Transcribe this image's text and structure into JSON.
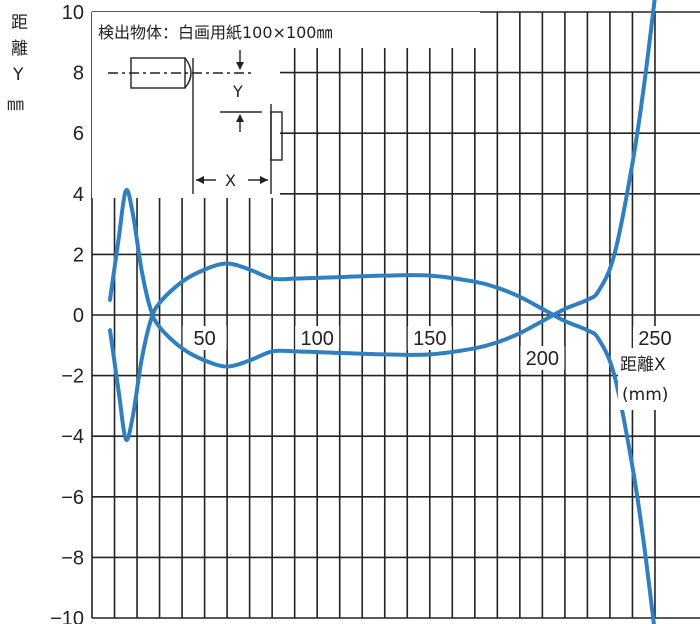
{
  "chart_data": {
    "type": "line",
    "title": "検出物体：白画用紙100×100㎜",
    "xlabel": "距離X",
    "xunit": "(mm)",
    "ylabel": [
      "距",
      "離",
      "Y",
      "㎜"
    ],
    "xlim": [
      0,
      270
    ],
    "ylim": [
      -10,
      10
    ],
    "x_ticks": [
      50,
      100,
      150,
      200,
      250
    ],
    "y_ticks": [
      10,
      8,
      6,
      4,
      2,
      0,
      -2,
      -4,
      -6,
      -8,
      -10
    ],
    "grid": true,
    "line_color": "#2f7fc1",
    "series": [
      {
        "x": [
          8,
          12,
          15,
          18,
          22,
          26,
          30,
          40,
          50,
          60,
          70,
          80,
          90,
          110,
          130,
          150,
          170,
          180,
          190,
          200,
          210,
          220,
          225,
          232,
          240,
          245,
          250
        ],
        "y": [
          0.5,
          2.6,
          4.1,
          3.4,
          1.5,
          0.2,
          -0.4,
          -1.1,
          -1.5,
          -1.7,
          -1.5,
          -1.2,
          -1.2,
          -1.25,
          -1.3,
          -1.3,
          -1.1,
          -0.9,
          -0.6,
          -0.2,
          0.2,
          0.5,
          0.8,
          2.0,
          5.0,
          7.5,
          10.5
        ]
      },
      {
        "x": [
          8,
          12,
          15,
          18,
          22,
          26,
          30,
          40,
          50,
          60,
          70,
          80,
          90,
          110,
          130,
          150,
          170,
          180,
          190,
          200,
          210,
          220,
          225,
          232,
          240,
          245,
          250
        ],
        "y": [
          -0.5,
          -2.6,
          -4.1,
          -3.4,
          -1.5,
          -0.2,
          0.4,
          1.1,
          1.5,
          1.7,
          1.5,
          1.2,
          1.2,
          1.25,
          1.3,
          1.3,
          1.1,
          0.9,
          0.6,
          0.2,
          -0.2,
          -0.5,
          -0.8,
          -2.0,
          -5.0,
          -7.5,
          -10.5
        ]
      }
    ],
    "inset_labels": {
      "x": "X",
      "y": "Y"
    }
  }
}
